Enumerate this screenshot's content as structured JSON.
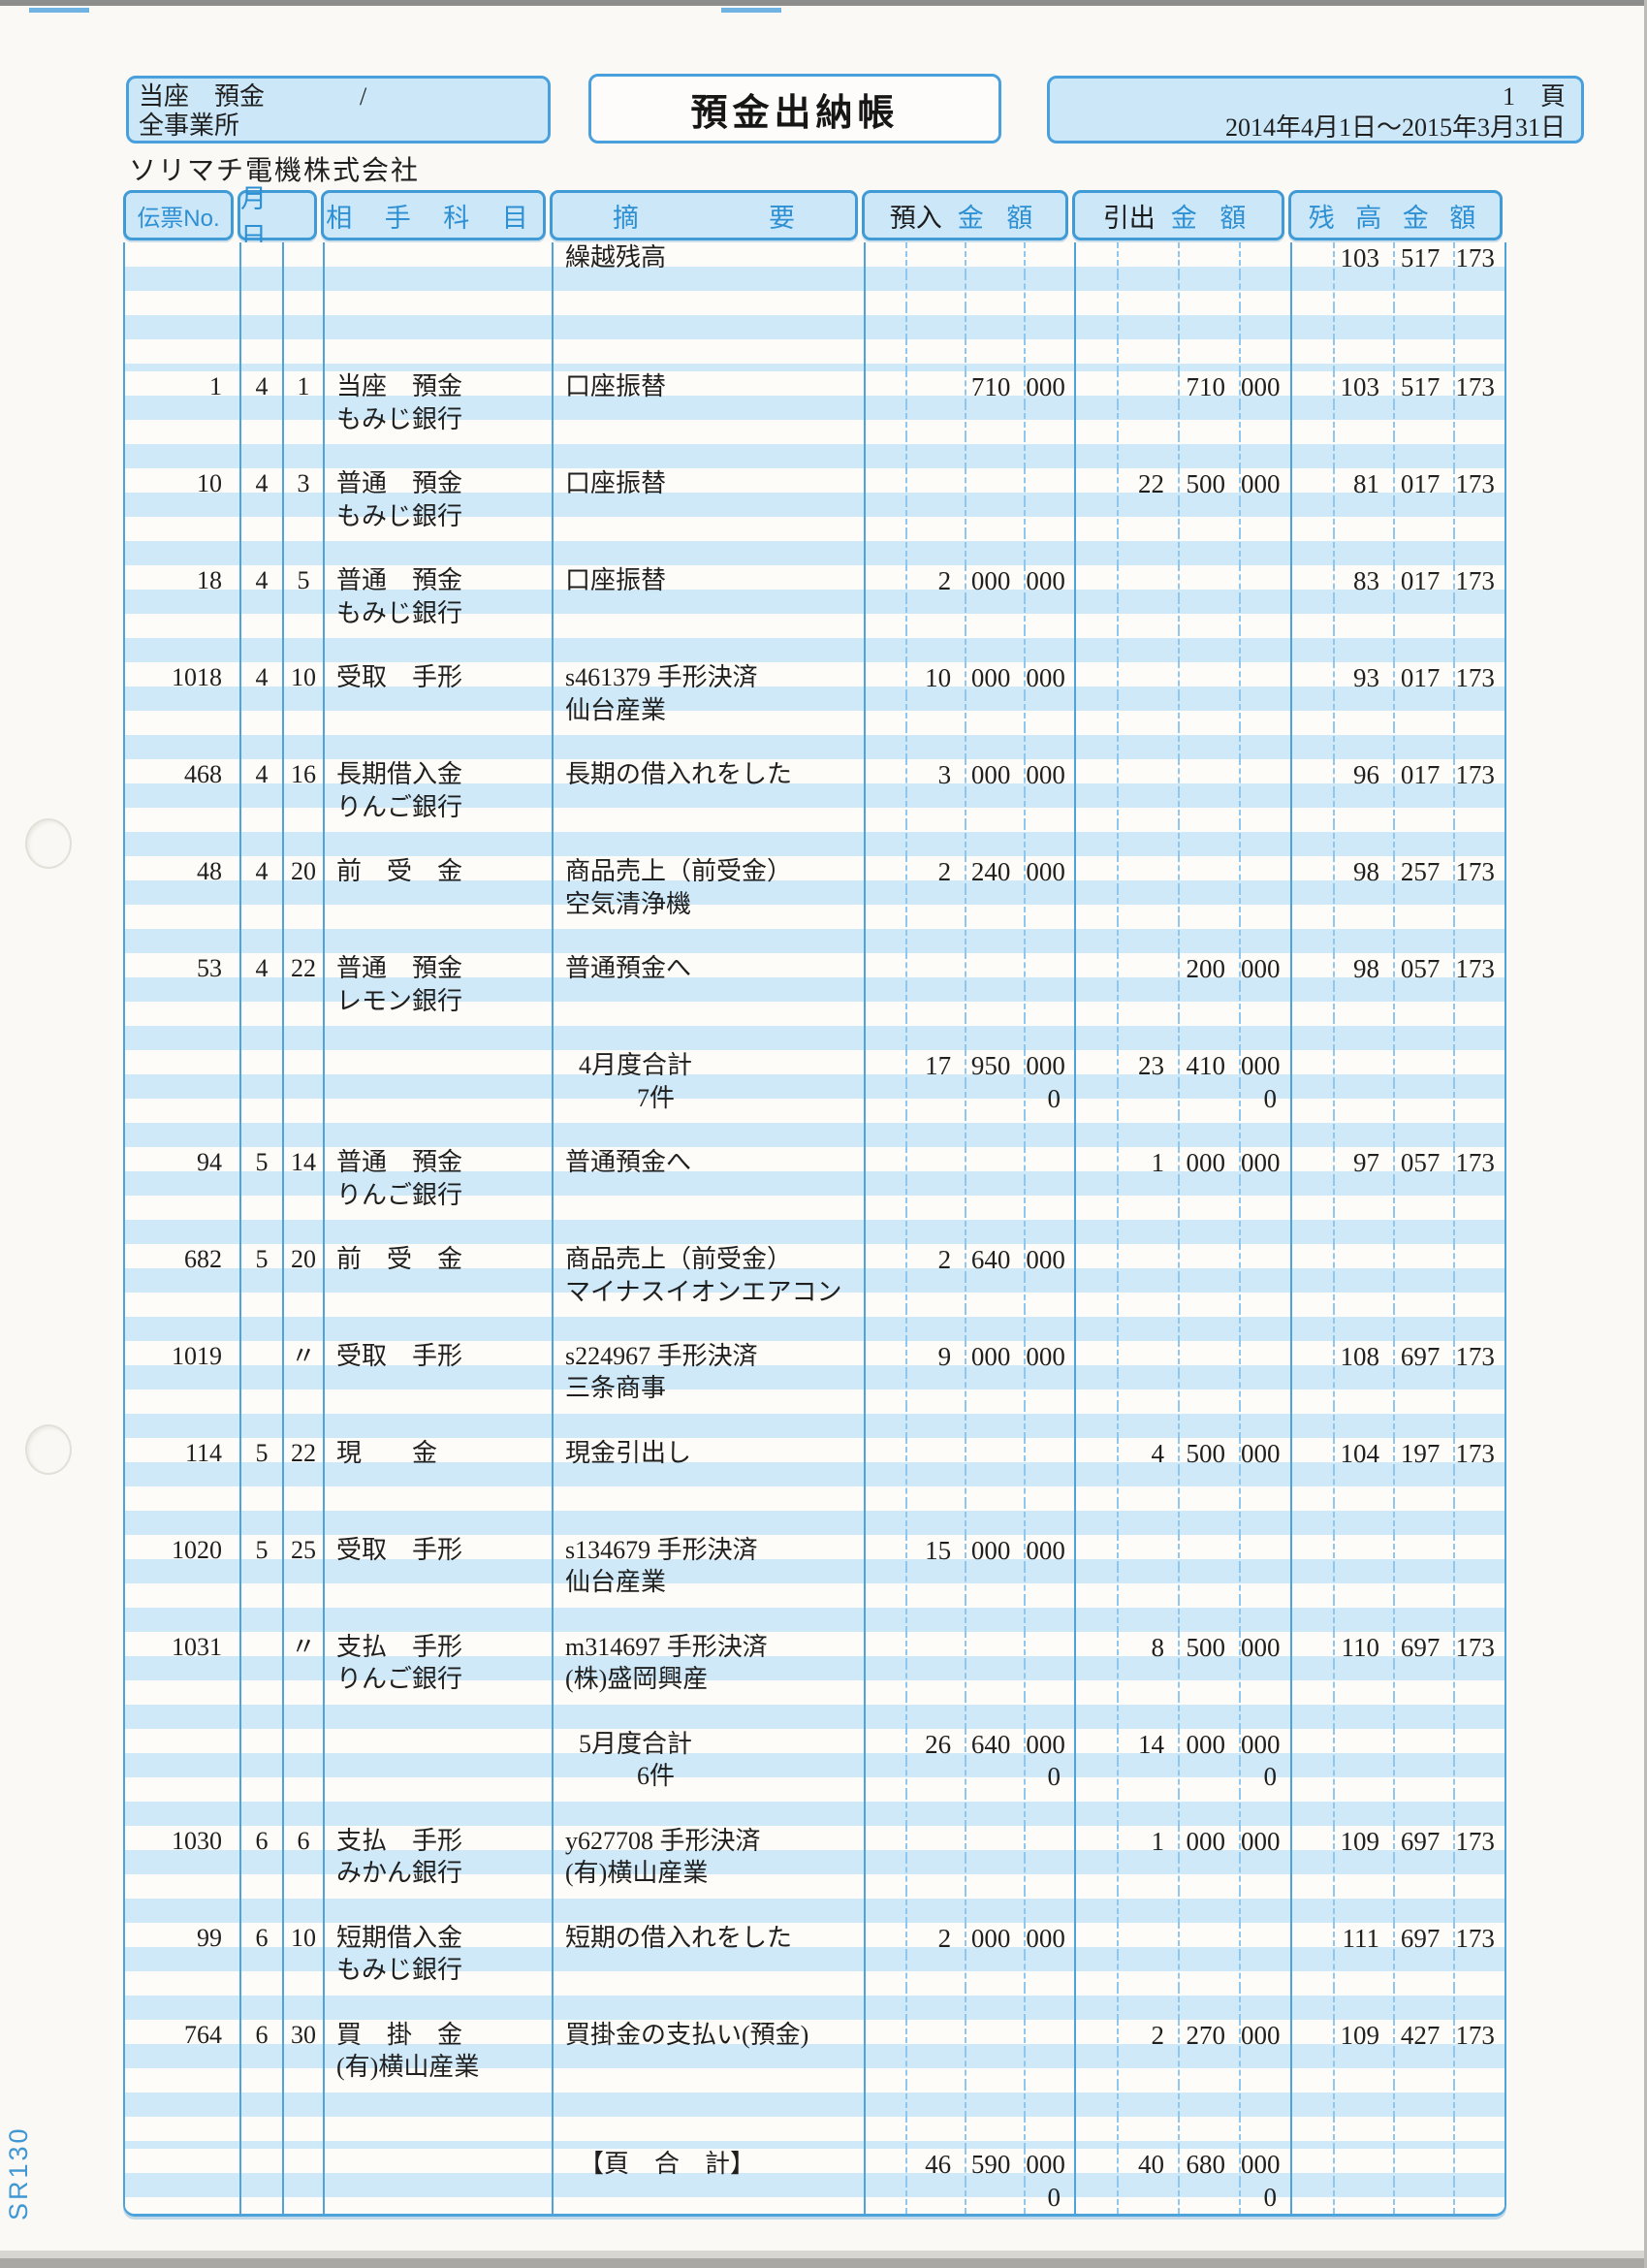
{
  "page": {
    "account_box": {
      "line1": "当座　預金",
      "slash": "/",
      "line2": "全事業所"
    },
    "title": "預金出納帳",
    "page_info": {
      "page_number": "1",
      "page_unit": "頁",
      "period": "2014年4月1日〜2015年3月31日"
    },
    "company": "ソリマチ電機株式会社",
    "form_code": "SR130"
  },
  "colors": {
    "form_blue_border": "#4da3da",
    "preprint_text_blue": "#2e90d3",
    "stripe_blue": "#d0e9f8",
    "header_fill": "#cbe7f8",
    "ink_black": "#1f1f1f"
  },
  "table": {
    "headers": {
      "voucher_no": "伝票No.",
      "month_day": "月 日",
      "counter_account": "相 手 科 目",
      "summary_left": "摘",
      "summary_right": "要",
      "deposit_prefix": "預入",
      "deposit_suffix": "金 額",
      "withdrawal_prefix": "引出",
      "withdrawal_suffix": "金 額",
      "balance": "残 高 金 額"
    },
    "rows": [
      {
        "type": "carry",
        "summary": "繰越残高",
        "balance": "103 517 173"
      },
      {
        "type": "entry",
        "no": "1",
        "month": "4",
        "day": "1",
        "account": "当座　預金",
        "account2": "もみじ銀行",
        "summary": "口座振替",
        "summary2": "",
        "deposit": "710 000",
        "withdrawal": "710 000",
        "balance": "103 517 173"
      },
      {
        "type": "entry",
        "no": "10",
        "month": "4",
        "day": "3",
        "account": "普通　預金",
        "account2": "もみじ銀行",
        "summary": "口座振替",
        "summary2": "",
        "deposit": "",
        "withdrawal": "22 500 000",
        "balance": "81 017 173"
      },
      {
        "type": "entry",
        "no": "18",
        "month": "4",
        "day": "5",
        "account": "普通　預金",
        "account2": "もみじ銀行",
        "summary": "口座振替",
        "summary2": "",
        "deposit": "2 000 000",
        "withdrawal": "",
        "balance": "83 017 173"
      },
      {
        "type": "entry",
        "no": "1018",
        "month": "4",
        "day": "10",
        "account": "受取　手形",
        "account2": "",
        "summary": "s461379 手形決済",
        "summary2": "仙台産業",
        "deposit": "10 000 000",
        "withdrawal": "",
        "balance": "93 017 173"
      },
      {
        "type": "entry",
        "no": "468",
        "month": "4",
        "day": "16",
        "account": "長期借入金",
        "account2": "りんご銀行",
        "summary": "長期の借入れをした",
        "summary2": "",
        "deposit": "3 000 000",
        "withdrawal": "",
        "balance": "96 017 173"
      },
      {
        "type": "entry",
        "no": "48",
        "month": "4",
        "day": "20",
        "account": "前　受　金",
        "account2": "",
        "summary": "商品売上（前受金）",
        "summary2": "空気清浄機",
        "deposit": "2 240 000",
        "withdrawal": "",
        "balance": "98 257 173"
      },
      {
        "type": "entry",
        "no": "53",
        "month": "4",
        "day": "22",
        "account": "普通　預金",
        "account2": "レモン銀行",
        "summary": "普通預金へ",
        "summary2": "",
        "deposit": "",
        "withdrawal": "200 000",
        "balance": "98 057 173"
      },
      {
        "type": "monthtotal",
        "label": "4月度合計",
        "count": "7件",
        "deposit": "17 950 000",
        "withdrawal": "23 410 000",
        "deposit2": "0",
        "withdrawal2": "0"
      },
      {
        "type": "entry",
        "no": "94",
        "month": "5",
        "day": "14",
        "account": "普通　預金",
        "account2": "りんご銀行",
        "summary": "普通預金へ",
        "summary2": "",
        "deposit": "",
        "withdrawal": "1 000 000",
        "balance": "97 057 173"
      },
      {
        "type": "entry",
        "no": "682",
        "month": "5",
        "day": "20",
        "account": "前　受　金",
        "account2": "",
        "summary": "商品売上（前受金）",
        "summary2": "マイナスイオンエアコン",
        "deposit": "2 640 000",
        "withdrawal": "",
        "balance": ""
      },
      {
        "type": "entry",
        "no": "1019",
        "month": "",
        "day": "〃",
        "account": "受取　手形",
        "account2": "",
        "summary": "s224967 手形決済",
        "summary2": "三条商事",
        "deposit": "9 000 000",
        "withdrawal": "",
        "balance": "108 697 173"
      },
      {
        "type": "entry",
        "no": "114",
        "month": "5",
        "day": "22",
        "account": "現　　金",
        "account2": "",
        "summary": "現金引出し",
        "summary2": "",
        "deposit": "",
        "withdrawal": "4 500 000",
        "balance": "104 197 173"
      },
      {
        "type": "entry",
        "no": "1020",
        "month": "5",
        "day": "25",
        "account": "受取　手形",
        "account2": "",
        "summary": "s134679 手形決済",
        "summary2": "仙台産業",
        "deposit": "15 000 000",
        "withdrawal": "",
        "balance": ""
      },
      {
        "type": "entry",
        "no": "1031",
        "month": "",
        "day": "〃",
        "account": "支払　手形",
        "account2": "りんご銀行",
        "summary": "m314697 手形決済",
        "summary2": "(株)盛岡興産",
        "deposit": "",
        "withdrawal": "8 500 000",
        "balance": "110 697 173"
      },
      {
        "type": "monthtotal",
        "label": "5月度合計",
        "count": "6件",
        "deposit": "26 640 000",
        "withdrawal": "14 000 000",
        "deposit2": "0",
        "withdrawal2": "0"
      },
      {
        "type": "entry",
        "no": "1030",
        "month": "6",
        "day": "6",
        "account": "支払　手形",
        "account2": "みかん銀行",
        "summary": "y627708 手形決済",
        "summary2": "(有)横山産業",
        "deposit": "",
        "withdrawal": "1 000 000",
        "balance": "109 697 173"
      },
      {
        "type": "entry",
        "no": "99",
        "month": "6",
        "day": "10",
        "account": "短期借入金",
        "account2": "もみじ銀行",
        "summary": "短期の借入れをした",
        "summary2": "",
        "deposit": "2 000 000",
        "withdrawal": "",
        "balance": "111 697 173"
      },
      {
        "type": "entry",
        "no": "764",
        "month": "6",
        "day": "30",
        "account": "買　掛　金",
        "account2": "(有)横山産業",
        "summary": "買掛金の支払い(預金)",
        "summary2": "",
        "deposit": "",
        "withdrawal": "2 270 000",
        "balance": "109 427 173"
      },
      {
        "type": "spacer",
        "lines": 1
      },
      {
        "type": "pagetotal",
        "label": "【頁　合　計】",
        "deposit": "46 590 000",
        "withdrawal": "40 680 000",
        "deposit2": "0",
        "withdrawal2": "0"
      }
    ]
  }
}
